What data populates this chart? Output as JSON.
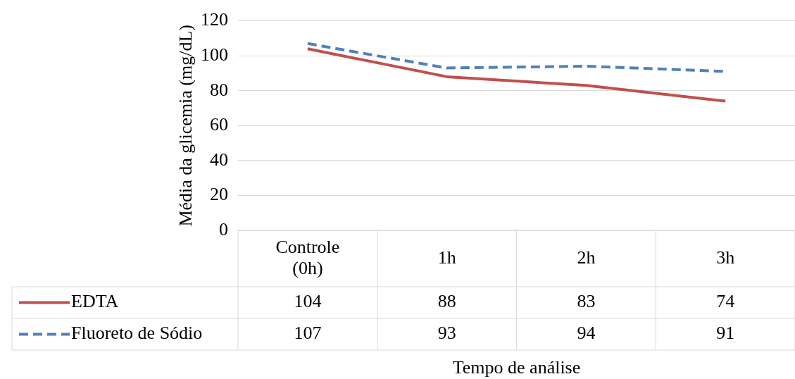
{
  "chart_data": {
    "type": "line",
    "xlabel": "Tempo de análise",
    "ylabel": "Média da glicemia (mg/dL)",
    "categories": [
      "Controle (0h)",
      "1h",
      "2h",
      "3h"
    ],
    "series": [
      {
        "name": "EDTA",
        "color": "#c0504d",
        "values": [
          104,
          88,
          83,
          74
        ],
        "line_style": "solid"
      },
      {
        "name": "Fluoreto de Sódio",
        "color": "#4f81bd",
        "values": [
          107,
          93,
          94,
          91
        ],
        "line_style": "dashed"
      }
    ],
    "ylim": [
      0,
      120
    ],
    "yticks": [
      0,
      20,
      40,
      60,
      80,
      100,
      120
    ],
    "grid": "y",
    "legend": "bottom",
    "data_labels": true,
    "marker": "none"
  }
}
